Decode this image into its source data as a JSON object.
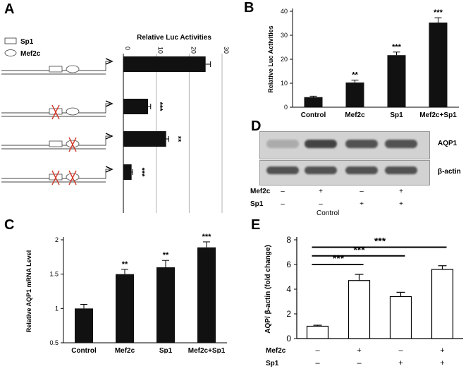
{
  "panels": {
    "a": "A",
    "b": "B",
    "c": "C",
    "d": "D",
    "e": "E"
  },
  "colors": {
    "bar_dark": "#111111",
    "bar_open": "#ffffff",
    "mutation_x": "#d23a2a",
    "axis": "#000000",
    "grid": "#a0a0a0",
    "blot_bg": "#d2d2d2",
    "band": "#3c3c3c"
  },
  "chart_data": [
    {
      "panel": "A",
      "type": "bar",
      "orientation": "horizontal",
      "title": "Relative Luc Activities",
      "legend": [
        {
          "shape": "rectangle",
          "label": "Sp1"
        },
        {
          "shape": "ellipse",
          "label": "Mef2c"
        }
      ],
      "constructs": [
        {
          "sp1_mutated": false,
          "mef2c_mutated": false
        },
        {
          "sp1_mutated": true,
          "mef2c_mutated": false
        },
        {
          "sp1_mutated": false,
          "mef2c_mutated": true
        },
        {
          "sp1_mutated": true,
          "mef2c_mutated": true
        }
      ],
      "values": [
        25,
        7.5,
        13,
        2.5
      ],
      "errors": [
        1.5,
        0.8,
        0.8,
        0.3
      ],
      "significance": [
        "",
        "***",
        "**",
        "***"
      ],
      "xlim": [
        0,
        30
      ],
      "xticks": [
        "0",
        "10",
        "20",
        "30"
      ],
      "grid": true
    },
    {
      "panel": "B",
      "type": "bar",
      "categories": [
        "Control",
        "Mef2c",
        "Sp1",
        "Mef2c+Sp1"
      ],
      "values": [
        4.2,
        10.3,
        21.7,
        35.3
      ],
      "errors": [
        0.4,
        1.0,
        1.3,
        2.0
      ],
      "significance": [
        "",
        "**",
        "***",
        "***"
      ],
      "ylabel": "Relative Luc Activities",
      "ylim": [
        0,
        40
      ],
      "yticks": [
        "0",
        "10",
        "20",
        "30",
        "40"
      ]
    },
    {
      "panel": "C",
      "type": "bar",
      "categories": [
        "Control",
        "Mef2c",
        "Sp1",
        "Mef2c+Sp1"
      ],
      "values": [
        1.0,
        1.5,
        1.6,
        1.89
      ],
      "errors": [
        0.06,
        0.07,
        0.1,
        0.08
      ],
      "significance": [
        "",
        "**",
        "**",
        "***"
      ],
      "ylabel": "Relative AQP1 mRNA Level",
      "ylim": [
        0.5,
        2
      ],
      "yticks": [
        "0.5",
        "1",
        "1.5",
        "2"
      ]
    },
    {
      "panel": "E",
      "type": "bar",
      "categories": [
        "Control",
        "Mef2c",
        "Sp1",
        "Mef2c+Sp1"
      ],
      "values": [
        1.0,
        4.7,
        3.4,
        5.6
      ],
      "errors": [
        0.08,
        0.5,
        0.35,
        0.3
      ],
      "ylabel": "AQP/ β-actin (fold change)",
      "ylim": [
        0,
        8
      ],
      "yticks": [
        "0",
        "2",
        "4",
        "6",
        "8"
      ],
      "comparisons": [
        {
          "from": 0,
          "to": 1,
          "label": "***"
        },
        {
          "from": 0,
          "to": 2,
          "label": "***"
        },
        {
          "from": 0,
          "to": 3,
          "label": "***"
        }
      ],
      "treatment_rows": [
        {
          "label": "Mef2c",
          "values": [
            "–",
            "+",
            "–",
            "+"
          ]
        },
        {
          "label": "Sp1",
          "values": [
            "–",
            "–",
            "+",
            "+"
          ]
        }
      ]
    }
  ],
  "blot": {
    "lanes": 4,
    "rows": [
      {
        "label": "AQP1",
        "band_intensity": [
          0.25,
          0.95,
          0.85,
          0.85
        ]
      },
      {
        "label": "β-actin",
        "band_intensity": [
          0.85,
          0.85,
          0.85,
          0.85
        ]
      }
    ],
    "treatment_rows": [
      {
        "label": "Mef2c",
        "values": [
          "–",
          "+",
          "–",
          "+"
        ]
      },
      {
        "label": "Sp1",
        "values": [
          "–",
          "–",
          "+",
          "+"
        ]
      }
    ],
    "control_label": "Control"
  }
}
